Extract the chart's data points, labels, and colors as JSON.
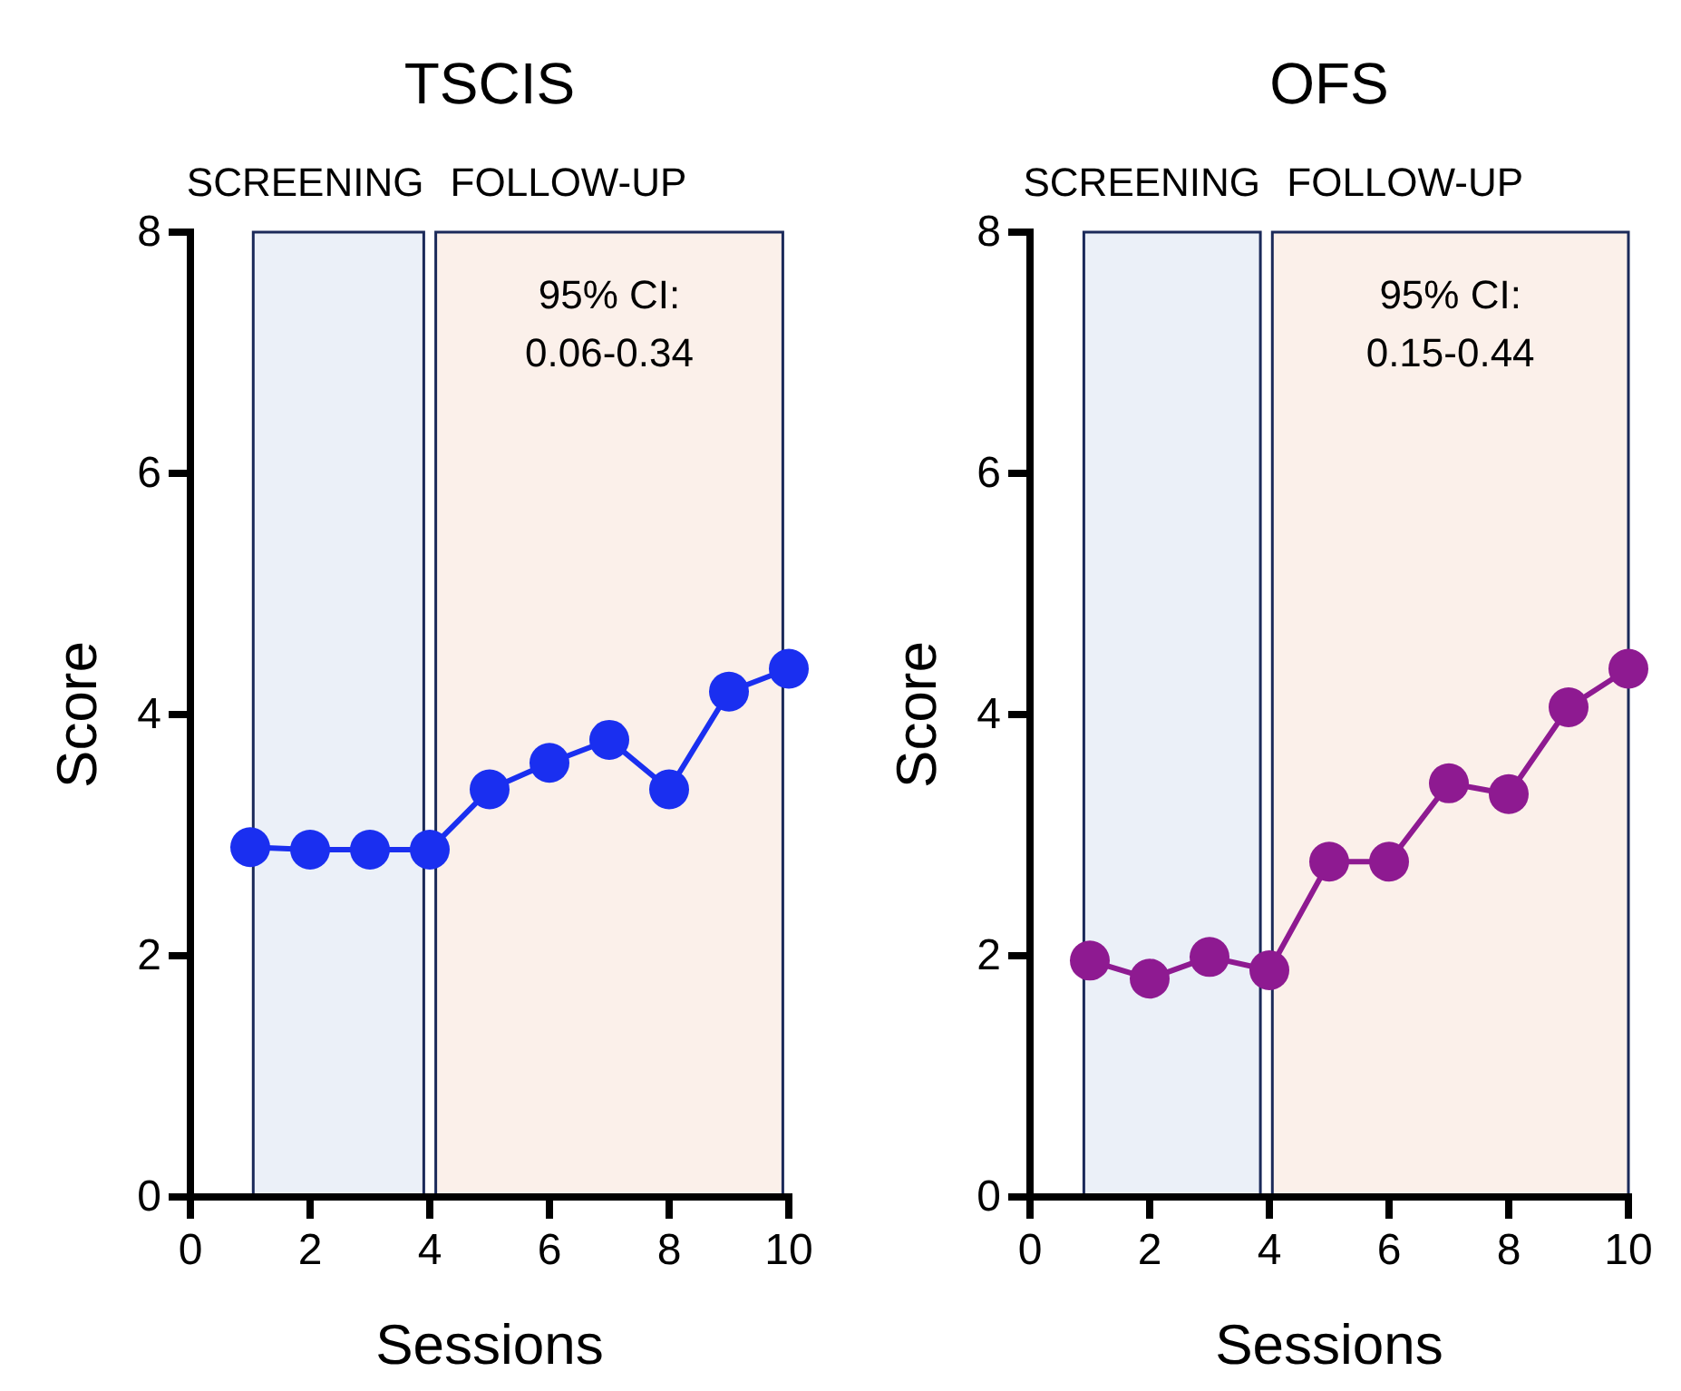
{
  "chart_data": [
    {
      "type": "line",
      "title": "TSCIS",
      "xlabel": "Sessions",
      "ylabel": "Score",
      "x": [
        1,
        2,
        3,
        4,
        5,
        6,
        7,
        8,
        9,
        10
      ],
      "series": [
        {
          "color": "#1a2ff0",
          "values": [
            2.9,
            2.88,
            2.88,
            2.88,
            3.38,
            3.6,
            3.79,
            3.38,
            4.19,
            4.38
          ]
        }
      ],
      "xlim": [
        0,
        10
      ],
      "xticks": [
        0,
        2,
        4,
        6,
        8,
        10
      ],
      "ylim": [
        0,
        8
      ],
      "yticks": [
        0,
        2,
        4,
        6,
        8
      ],
      "grid": false,
      "marker": "circle",
      "line_style": "solid",
      "bands": [
        {
          "axis": "x",
          "from": 1.05,
          "to": 3.9,
          "label": "SCREENING",
          "color": "#ebf0f8"
        },
        {
          "axis": "x",
          "from": 4.1,
          "to": 9.9,
          "label": "FOLLOW-UP",
          "color": "#fbf0ea"
        }
      ],
      "annotations": [
        "95% CI:\n0.06-0.34"
      ]
    },
    {
      "type": "line",
      "title": "OFS",
      "xlabel": "Sessions",
      "ylabel": "Score",
      "x": [
        1,
        2,
        3,
        4,
        5,
        6,
        7,
        8,
        9,
        10
      ],
      "series": [
        {
          "color": "#8e1a91",
          "values": [
            1.96,
            1.81,
            1.99,
            1.88,
            2.78,
            2.78,
            3.43,
            3.34,
            4.06,
            4.38
          ]
        }
      ],
      "xlim": [
        0,
        10
      ],
      "xticks": [
        0,
        2,
        4,
        6,
        8,
        10
      ],
      "ylim": [
        0,
        8
      ],
      "yticks": [
        0,
        2,
        4,
        6,
        8
      ],
      "grid": false,
      "marker": "circle",
      "line_style": "solid",
      "bands": [
        {
          "axis": "x",
          "from": 0.9,
          "to": 3.85,
          "label": "SCREENING",
          "color": "#ebf0f8"
        },
        {
          "axis": "x",
          "from": 4.05,
          "to": 10,
          "label": "FOLLOW-UP",
          "color": "#fbf0ea"
        }
      ],
      "annotations": [
        "95% CI:\n0.15-0.44"
      ]
    }
  ]
}
